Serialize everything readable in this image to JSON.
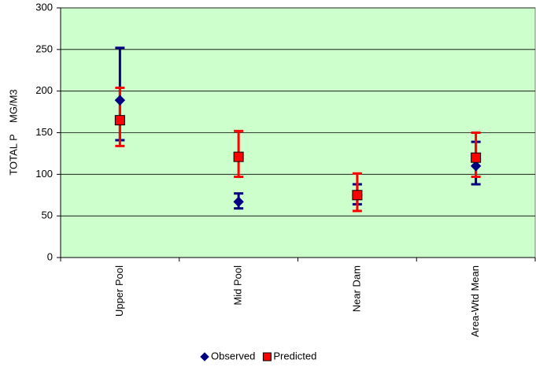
{
  "chart_data": {
    "type": "errorbar",
    "y_label": "TOTAL P    MG/M3",
    "categories": [
      "Upper Pool",
      "Mid Pool",
      "Near Dam",
      "Area-Wtd Mean"
    ],
    "series": [
      {
        "name": "Observed",
        "color": "#000080",
        "marker": "diamond",
        "values": [
          189,
          67,
          75,
          110
        ],
        "low": [
          141,
          59,
          64,
          88
        ],
        "high": [
          252,
          77,
          88,
          139
        ]
      },
      {
        "name": "Predicted",
        "color": "#ff0000",
        "marker": "square",
        "values": [
          165,
          121,
          75,
          120
        ],
        "low": [
          134,
          97,
          56,
          97
        ],
        "high": [
          204,
          152,
          101,
          150
        ]
      }
    ],
    "ylim": [
      0,
      300
    ],
    "yticks": [
      0,
      50,
      100,
      150,
      200,
      250,
      300
    ],
    "grid": true,
    "legend": "bottom",
    "background": "#ccffcc"
  }
}
